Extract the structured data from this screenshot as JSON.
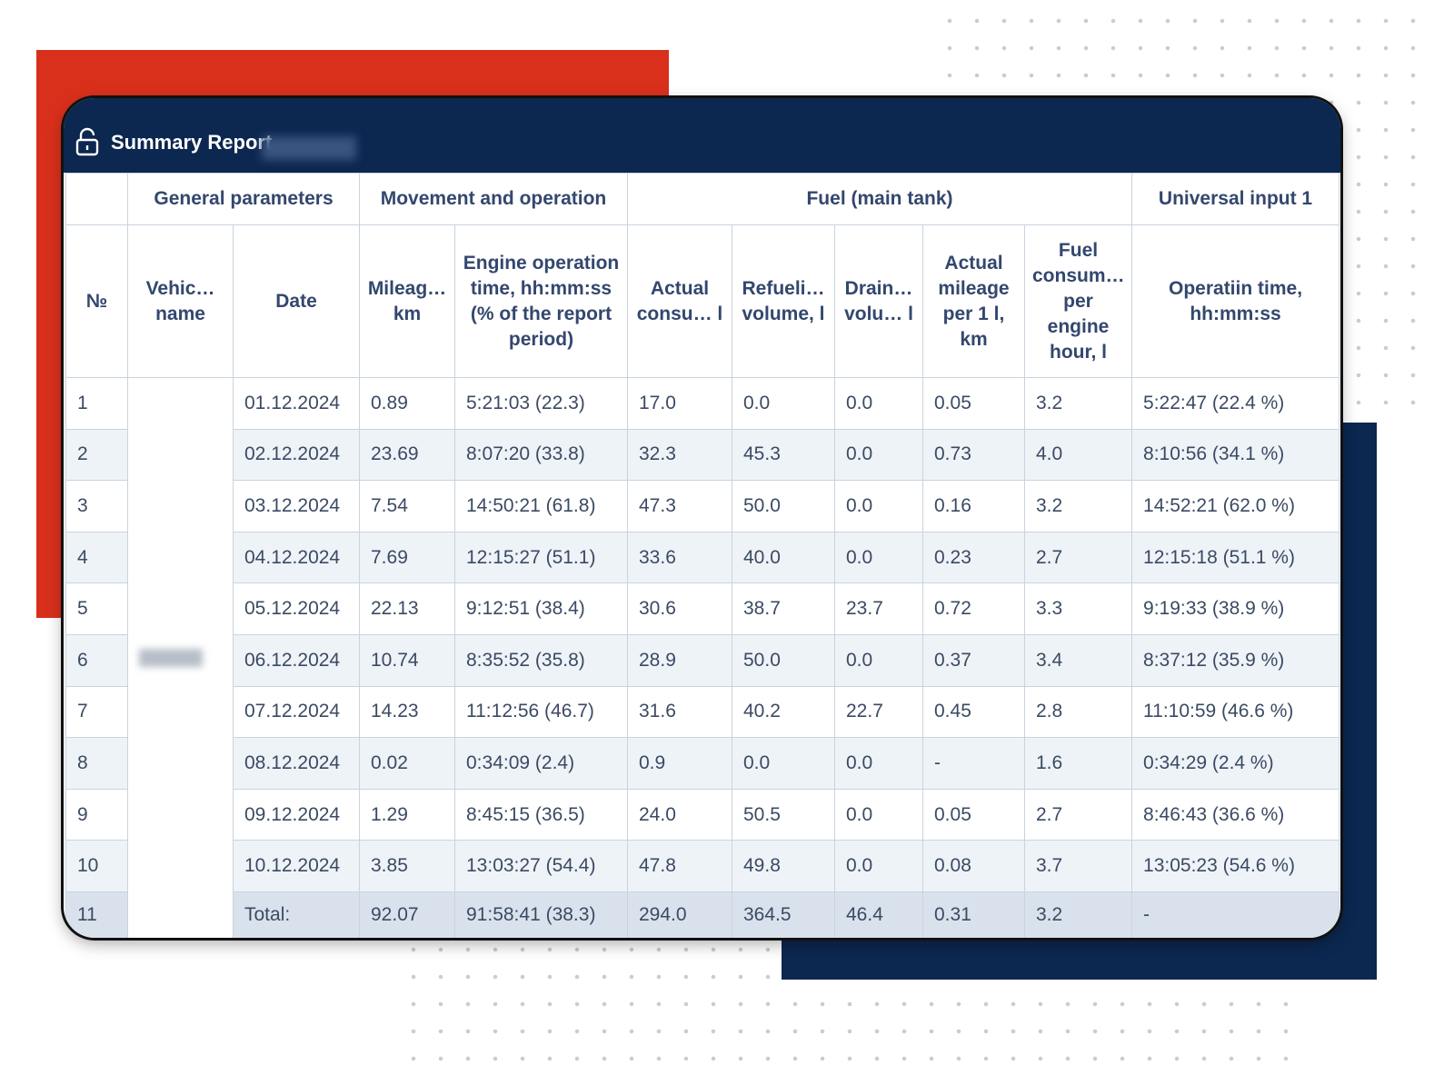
{
  "header": {
    "title": "Summary Report"
  },
  "table": {
    "groups": [
      "General parameters",
      "Movement and operation",
      "Fuel (main tank)",
      "Universal input 1"
    ],
    "columns": [
      "№",
      "Vehic… name",
      "Date",
      "Mileag… km",
      "Engine operation time, hh:mm:ss (% of the report period)",
      "Actual consu… l",
      "Refueli… volume, l",
      "Drain… volu… l",
      "Actual mileage per 1 l, km",
      "Fuel consum… per engine hour, l",
      "Operatiin time, hh:mm:ss"
    ],
    "rows": [
      [
        "1",
        "01.12.2024",
        "0.89",
        "5:21:03 (22.3)",
        "17.0",
        "0.0",
        "0.0",
        "0.05",
        "3.2",
        "5:22:47 (22.4 %)"
      ],
      [
        "2",
        "02.12.2024",
        "23.69",
        "8:07:20 (33.8)",
        "32.3",
        "45.3",
        "0.0",
        "0.73",
        "4.0",
        "8:10:56 (34.1 %)"
      ],
      [
        "3",
        "03.12.2024",
        "7.54",
        "14:50:21 (61.8)",
        "47.3",
        "50.0",
        "0.0",
        "0.16",
        "3.2",
        "14:52:21 (62.0 %)"
      ],
      [
        "4",
        "04.12.2024",
        "7.69",
        "12:15:27 (51.1)",
        "33.6",
        "40.0",
        "0.0",
        "0.23",
        "2.7",
        "12:15:18 (51.1 %)"
      ],
      [
        "5",
        "05.12.2024",
        "22.13",
        "9:12:51 (38.4)",
        "30.6",
        "38.7",
        "23.7",
        "0.72",
        "3.3",
        "9:19:33 (38.9 %)"
      ],
      [
        "6",
        "06.12.2024",
        "10.74",
        "8:35:52 (35.8)",
        "28.9",
        "50.0",
        "0.0",
        "0.37",
        "3.4",
        "8:37:12 (35.9 %)"
      ],
      [
        "7",
        "07.12.2024",
        "14.23",
        "11:12:56 (46.7)",
        "31.6",
        "40.2",
        "22.7",
        "0.45",
        "2.8",
        "11:10:59 (46.6 %)"
      ],
      [
        "8",
        "08.12.2024",
        "0.02",
        "0:34:09 (2.4)",
        "0.9",
        "0.0",
        "0.0",
        "-",
        "1.6",
        "0:34:29 (2.4 %)"
      ],
      [
        "9",
        "09.12.2024",
        "1.29",
        "8:45:15 (36.5)",
        "24.0",
        "50.5",
        "0.0",
        "0.05",
        "2.7",
        "8:46:43 (36.6 %)"
      ],
      [
        "10",
        "10.12.2024",
        "3.85",
        "13:03:27 (54.4)",
        "47.8",
        "49.8",
        "0.0",
        "0.08",
        "3.7",
        "13:05:23 (54.6 %)"
      ]
    ],
    "total": {
      "number": "11",
      "label": "Total:",
      "values": [
        "92.07",
        "91:58:41 (38.3)",
        "294.0",
        "364.5",
        "46.4",
        "0.31",
        "3.2",
        "-"
      ]
    }
  }
}
